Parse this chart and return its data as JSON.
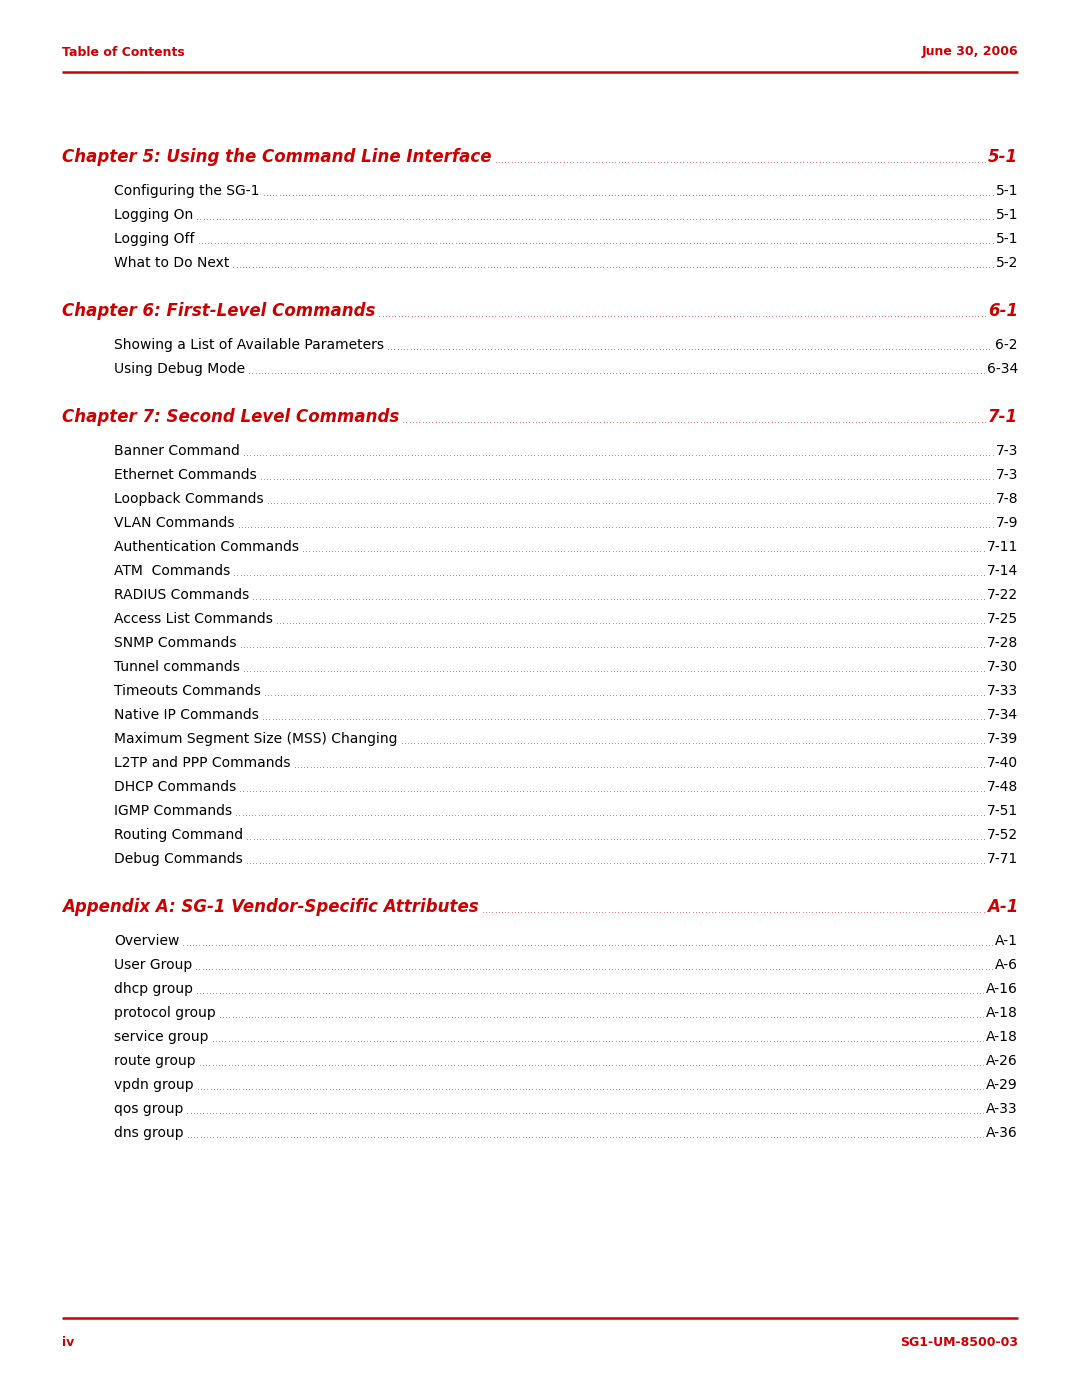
{
  "header_left": "Table of Contents",
  "header_right": "June 30, 2006",
  "footer_left": "iv",
  "footer_right": "SG1-UM-8500-03",
  "header_color": "#CC0000",
  "line_color": "#CC0000",
  "chapter_color": "#CC0000",
  "text_color": "#000000",
  "bg_color": "#FFFFFF",
  "chapters": [
    {
      "title": "Chapter 5: Using the Command Line Interface",
      "page": "5-1",
      "is_chapter": true,
      "indent": 0
    },
    {
      "title": "Configuring the SG-1",
      "page": "5-1",
      "is_chapter": false,
      "indent": 1
    },
    {
      "title": "Logging On",
      "page": "5-1",
      "is_chapter": false,
      "indent": 1
    },
    {
      "title": "Logging Off",
      "page": "5-1",
      "is_chapter": false,
      "indent": 1
    },
    {
      "title": "What to Do Next",
      "page": "5-2",
      "is_chapter": false,
      "indent": 1
    },
    {
      "title": "Chapter 6: First-Level Commands",
      "page": "6-1",
      "is_chapter": true,
      "indent": 0
    },
    {
      "title": "Showing a List of Available Parameters",
      "page": "6-2",
      "is_chapter": false,
      "indent": 1
    },
    {
      "title": "Using Debug Mode",
      "page": "6-34",
      "is_chapter": false,
      "indent": 1
    },
    {
      "title": "Chapter 7: Second Level Commands",
      "page": "7-1",
      "is_chapter": true,
      "indent": 0
    },
    {
      "title": "Banner Command",
      "page": "7-3",
      "is_chapter": false,
      "indent": 1
    },
    {
      "title": "Ethernet Commands",
      "page": "7-3",
      "is_chapter": false,
      "indent": 1
    },
    {
      "title": "Loopback Commands",
      "page": "7-8",
      "is_chapter": false,
      "indent": 1
    },
    {
      "title": "VLAN Commands",
      "page": "7-9",
      "is_chapter": false,
      "indent": 1
    },
    {
      "title": "Authentication Commands",
      "page": "7-11",
      "is_chapter": false,
      "indent": 1
    },
    {
      "title": "ATM  Commands",
      "page": "7-14",
      "is_chapter": false,
      "indent": 1
    },
    {
      "title": "RADIUS Commands",
      "page": "7-22",
      "is_chapter": false,
      "indent": 1
    },
    {
      "title": "Access List Commands",
      "page": "7-25",
      "is_chapter": false,
      "indent": 1
    },
    {
      "title": "SNMP Commands",
      "page": "7-28",
      "is_chapter": false,
      "indent": 1
    },
    {
      "title": "Tunnel commands",
      "page": "7-30",
      "is_chapter": false,
      "indent": 1
    },
    {
      "title": "Timeouts Commands",
      "page": "7-33",
      "is_chapter": false,
      "indent": 1
    },
    {
      "title": "Native IP Commands",
      "page": "7-34",
      "is_chapter": false,
      "indent": 1
    },
    {
      "title": "Maximum Segment Size (MSS) Changing",
      "page": "7-39",
      "is_chapter": false,
      "indent": 1
    },
    {
      "title": "L2TP and PPP Commands",
      "page": "7-40",
      "is_chapter": false,
      "indent": 1
    },
    {
      "title": "DHCP Commands",
      "page": "7-48",
      "is_chapter": false,
      "indent": 1
    },
    {
      "title": "IGMP Commands",
      "page": "7-51",
      "is_chapter": false,
      "indent": 1
    },
    {
      "title": "Routing Command",
      "page": "7-52",
      "is_chapter": false,
      "indent": 1
    },
    {
      "title": "Debug Commands",
      "page": "7-71",
      "is_chapter": false,
      "indent": 1
    },
    {
      "title": "Appendix A: SG-1 Vendor-Specific Attributes",
      "page": "A-1",
      "is_chapter": true,
      "indent": 0
    },
    {
      "title": "Overview",
      "page": "A-1",
      "is_chapter": false,
      "indent": 1
    },
    {
      "title": "User Group",
      "page": "A-6",
      "is_chapter": false,
      "indent": 1
    },
    {
      "title": "dhcp group",
      "page": "A-16",
      "is_chapter": false,
      "indent": 1
    },
    {
      "title": "protocol group",
      "page": "A-18",
      "is_chapter": false,
      "indent": 1
    },
    {
      "title": "service group",
      "page": "A-18",
      "is_chapter": false,
      "indent": 1
    },
    {
      "title": "route group",
      "page": "A-26",
      "is_chapter": false,
      "indent": 1
    },
    {
      "title": "vpdn group",
      "page": "A-29",
      "is_chapter": false,
      "indent": 1
    },
    {
      "title": "qos group",
      "page": "A-33",
      "is_chapter": false,
      "indent": 1
    },
    {
      "title": "dns group",
      "page": "A-36",
      "is_chapter": false,
      "indent": 1
    }
  ]
}
